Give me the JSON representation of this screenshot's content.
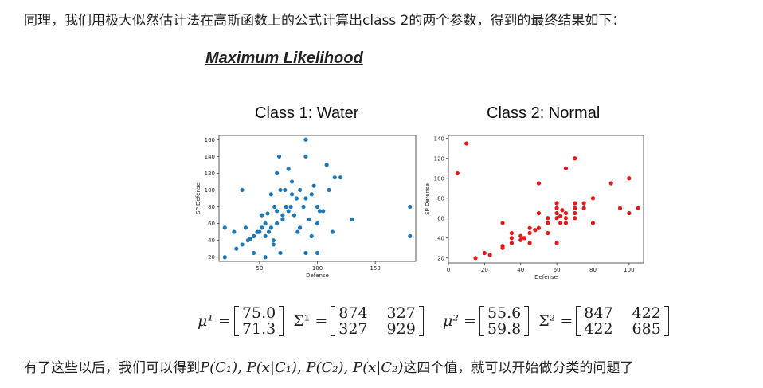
{
  "intro_text": "同理，我们用极大似然估计法在高斯函数上的公式计算出class 2的两个参数，得到的最终结果如下：",
  "section_title": "Maximum Likelihood",
  "outro": {
    "before": "有了这些以后，我们可以得到",
    "math": "P(C₁), P(x|C₁), P(C₂), P(x|C₂)",
    "after": "这四个值，就可以开始做分类的问题了"
  },
  "formulas": [
    {
      "mu_label": "μ¹ =",
      "mu": [
        "75.0",
        "71.3"
      ],
      "sigma_label": "Σ¹ =",
      "sigma": [
        [
          "874",
          "327"
        ],
        [
          "327",
          "929"
        ]
      ]
    },
    {
      "mu_label": "μ² =",
      "mu": [
        "55.6",
        "59.8"
      ],
      "sigma_label": "Σ² =",
      "sigma": [
        [
          "847",
          "422"
        ],
        [
          "422",
          "685"
        ]
      ]
    }
  ],
  "chart_data": [
    {
      "type": "scatter",
      "title": "Class 1: Water",
      "xlabel": "Defense",
      "ylabel": "SP Defense",
      "xlim": [
        15,
        185
      ],
      "ylim": [
        15,
        165
      ],
      "xticks": [
        50,
        100,
        150
      ],
      "yticks": [
        20,
        40,
        60,
        80,
        100,
        120,
        140,
        160
      ],
      "color": "#1f77b4",
      "grid": false,
      "points": [
        [
          20,
          20
        ],
        [
          20,
          55
        ],
        [
          28,
          50
        ],
        [
          30,
          30
        ],
        [
          35,
          100
        ],
        [
          35,
          35
        ],
        [
          38,
          55
        ],
        [
          40,
          40
        ],
        [
          42,
          42
        ],
        [
          45,
          45
        ],
        [
          45,
          25
        ],
        [
          48,
          50
        ],
        [
          50,
          50
        ],
        [
          52,
          55
        ],
        [
          52,
          70
        ],
        [
          55,
          60
        ],
        [
          55,
          20
        ],
        [
          55,
          45
        ],
        [
          57,
          72
        ],
        [
          58,
          50
        ],
        [
          60,
          55
        ],
        [
          60,
          95
        ],
        [
          62,
          40
        ],
        [
          62,
          35
        ],
        [
          63,
          80
        ],
        [
          65,
          75
        ],
        [
          65,
          120
        ],
        [
          65,
          60
        ],
        [
          67,
          140
        ],
        [
          68,
          25
        ],
        [
          68,
          100
        ],
        [
          70,
          70
        ],
        [
          70,
          65
        ],
        [
          72,
          100
        ],
        [
          73,
          80
        ],
        [
          75,
          75
        ],
        [
          75,
          125
        ],
        [
          77,
          80
        ],
        [
          78,
          95
        ],
        [
          78,
          110
        ],
        [
          80,
          70
        ],
        [
          82,
          90
        ],
        [
          83,
          50
        ],
        [
          85,
          100
        ],
        [
          85,
          55
        ],
        [
          88,
          80
        ],
        [
          90,
          90
        ],
        [
          90,
          25
        ],
        [
          90,
          160
        ],
        [
          90,
          140
        ],
        [
          93,
          65
        ],
        [
          95,
          45
        ],
        [
          95,
          95
        ],
        [
          97,
          105
        ],
        [
          100,
          80
        ],
        [
          100,
          60
        ],
        [
          100,
          25
        ],
        [
          102,
          75
        ],
        [
          105,
          75
        ],
        [
          108,
          130
        ],
        [
          110,
          100
        ],
        [
          113,
          50
        ],
        [
          115,
          115
        ],
        [
          120,
          115
        ],
        [
          130,
          65
        ],
        [
          180,
          80
        ],
        [
          180,
          45
        ]
      ]
    },
    {
      "type": "scatter",
      "title": "Class 2: Normal",
      "xlabel": "Defense",
      "ylabel": "SP Defense",
      "xlim": [
        0,
        108
      ],
      "ylim": [
        15,
        143
      ],
      "xticks": [
        0,
        20,
        40,
        60,
        80,
        100
      ],
      "yticks": [
        20,
        40,
        60,
        80,
        100,
        120,
        140
      ],
      "color": "#e31a1c",
      "grid": false,
      "points": [
        [
          5,
          105
        ],
        [
          10,
          135
        ],
        [
          15,
          20
        ],
        [
          20,
          25
        ],
        [
          23,
          23
        ],
        [
          30,
          30
        ],
        [
          30,
          32
        ],
        [
          30,
          55
        ],
        [
          35,
          40
        ],
        [
          35,
          45
        ],
        [
          35,
          35
        ],
        [
          40,
          38
        ],
        [
          40,
          42
        ],
        [
          42,
          40
        ],
        [
          45,
          45
        ],
        [
          45,
          50
        ],
        [
          45,
          35
        ],
        [
          48,
          48
        ],
        [
          50,
          50
        ],
        [
          50,
          65
        ],
        [
          50,
          95
        ],
        [
          55,
          55
        ],
        [
          55,
          60
        ],
        [
          55,
          45
        ],
        [
          60,
          60
        ],
        [
          60,
          65
        ],
        [
          60,
          70
        ],
        [
          60,
          75
        ],
        [
          60,
          35
        ],
        [
          62,
          55
        ],
        [
          62,
          62
        ],
        [
          63,
          68
        ],
        [
          65,
          55
        ],
        [
          65,
          60
        ],
        [
          65,
          65
        ],
        [
          65,
          110
        ],
        [
          70,
          60
        ],
        [
          70,
          65
        ],
        [
          70,
          70
        ],
        [
          70,
          75
        ],
        [
          70,
          120
        ],
        [
          75,
          70
        ],
        [
          75,
          75
        ],
        [
          80,
          55
        ],
        [
          80,
          80
        ],
        [
          90,
          95
        ],
        [
          95,
          70
        ],
        [
          100,
          65
        ],
        [
          100,
          100
        ],
        [
          105,
          70
        ]
      ]
    }
  ]
}
